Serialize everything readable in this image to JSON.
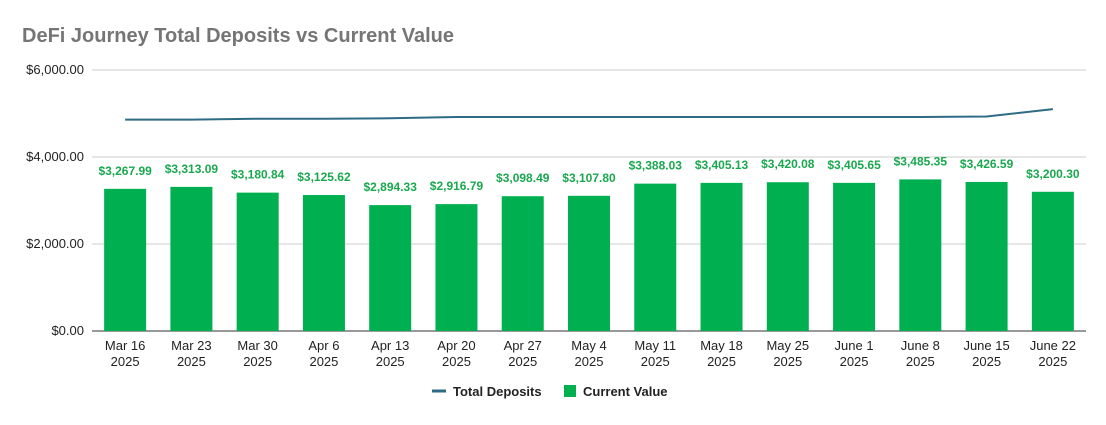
{
  "chart_data": {
    "type": "bar",
    "title": "DeFi Journey Total Deposits vs Current Value",
    "categories": [
      [
        "Mar 16",
        "2025"
      ],
      [
        "Mar 23",
        "2025"
      ],
      [
        "Mar 30",
        "2025"
      ],
      [
        "Apr 6",
        "2025"
      ],
      [
        "Apr 13",
        "2025"
      ],
      [
        "Apr 20",
        "2025"
      ],
      [
        "Apr 27",
        "2025"
      ],
      [
        "May 4",
        "2025"
      ],
      [
        "May 11",
        "2025"
      ],
      [
        "May 18",
        "2025"
      ],
      [
        "May 25",
        "2025"
      ],
      [
        "June 1",
        "2025"
      ],
      [
        "June 8",
        "2025"
      ],
      [
        "June 15",
        "2025"
      ],
      [
        "June 22",
        "2025"
      ]
    ],
    "series": [
      {
        "name": "Total Deposits",
        "type": "line",
        "color": "#2e6b85",
        "values": [
          4860,
          4860,
          4880,
          4880,
          4890,
          4920,
          4920,
          4920,
          4920,
          4920,
          4920,
          4920,
          4920,
          4930,
          5100
        ]
      },
      {
        "name": "Current Value",
        "type": "bar",
        "color": "#00b050",
        "values": [
          3267.99,
          3313.09,
          3180.84,
          3125.62,
          2894.33,
          2916.79,
          3098.49,
          3107.8,
          3388.03,
          3405.13,
          3420.08,
          3405.65,
          3485.35,
          3426.59,
          3200.3
        ],
        "labels": [
          "$3,267.99",
          "$3,313.09",
          "$3,180.84",
          "$3,125.62",
          "$2,894.33",
          "$2,916.79",
          "$3,098.49",
          "$3,107.80",
          "$3,388.03",
          "$3,405.13",
          "$3,420.08",
          "$3,405.65",
          "$3,485.35",
          "$3,426.59",
          "$3,200.30"
        ]
      }
    ],
    "ylim": [
      0,
      6000
    ],
    "yticks": [
      0,
      2000,
      4000,
      6000
    ],
    "ytick_labels": [
      "$0.00",
      "$2,000.00",
      "$4,000.00",
      "$6,000.00"
    ],
    "grid": true,
    "legend": "bottom-center"
  }
}
